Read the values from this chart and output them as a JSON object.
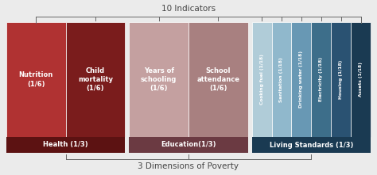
{
  "title_top": "10 Indicators",
  "title_bottom": "3 Dimensions of Poverty",
  "background_color": "#ebebeb",
  "health": {
    "label": "Health (1/3)",
    "color_bottom": "#5c1212",
    "indicators": [
      {
        "label": "Nutrition\n(1/6)",
        "color": "#b03232"
      },
      {
        "label": "Child\nmortality\n(1/6)",
        "color": "#7a1c1c"
      }
    ]
  },
  "education": {
    "label": "Education(1/3)",
    "color_bottom": "#6b3a42",
    "indicators": [
      {
        "label": "Years of\nschooling\n(1/6)",
        "color": "#c4a0a0"
      },
      {
        "label": "School\nattendance\n(1/6)",
        "color": "#a88080"
      }
    ]
  },
  "living": {
    "label": "Living Standards (1/3)",
    "color_bottom": "#1a3a52",
    "indicators": [
      {
        "label": "Cooking fuel\n(1/18)",
        "color": "#b0ccd8"
      },
      {
        "label": "Sanitation\n(1/18)",
        "color": "#90b8cc"
      },
      {
        "label": "Drinking water\n(1/18)",
        "color": "#6898b4"
      },
      {
        "label": "Electricity\n(1/18)",
        "color": "#3d6e8a"
      },
      {
        "label": "Housing\n(1/18)",
        "color": "#2a5272"
      },
      {
        "label": "Assets\n(1/18)",
        "color": "#1a3a52"
      }
    ]
  },
  "bracket_color": "#666666",
  "text_color_light": "#ffffff",
  "text_color_dark": "#444444"
}
